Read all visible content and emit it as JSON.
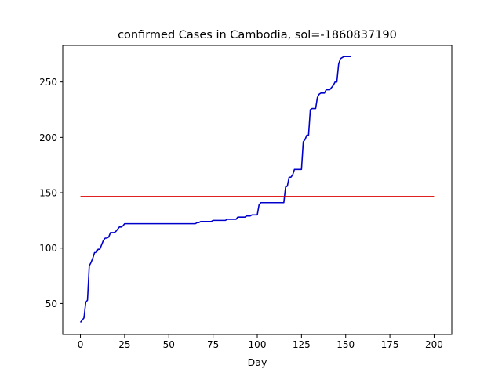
{
  "chart_data": {
    "type": "line",
    "title": "confirmed Cases in Cambodia, sol=-1860837190",
    "xlabel": "Day",
    "ylabel": "",
    "xlim": [
      -10,
      210
    ],
    "ylim": [
      22,
      283
    ],
    "xticks": [
      0,
      25,
      50,
      75,
      100,
      125,
      150,
      175,
      200
    ],
    "yticks": [
      50,
      100,
      150,
      200,
      250
    ],
    "grid": false,
    "legend": "none",
    "series": [
      {
        "color": "#0000cc",
        "x": [
          0,
          1,
          2,
          3,
          4,
          5,
          6,
          7,
          8,
          9,
          10,
          11,
          12,
          13,
          14,
          15,
          16,
          17,
          18,
          19,
          20,
          21,
          22,
          23,
          24,
          25,
          26,
          27,
          30,
          40,
          50,
          60,
          65,
          66,
          67,
          68,
          70,
          72,
          74,
          75,
          76,
          80,
          82,
          83,
          85,
          88,
          89,
          91,
          93,
          94,
          96,
          97,
          100,
          101,
          102,
          103,
          104,
          110,
          115,
          116,
          117,
          118,
          119,
          120,
          121,
          122,
          124,
          125,
          126,
          127,
          128,
          129,
          130,
          131,
          132,
          133,
          134,
          135,
          136,
          137,
          138,
          139,
          140,
          141,
          142,
          143,
          144,
          145,
          146,
          147,
          148,
          149,
          150,
          151,
          153
        ],
        "y": [
          33,
          35,
          37,
          51,
          53,
          84,
          87,
          91,
          96,
          96,
          99,
          99,
          103,
          107,
          109,
          109,
          110,
          114,
          114,
          114,
          115,
          117,
          119,
          119,
          120,
          122,
          122,
          122,
          122,
          122,
          122,
          122,
          122,
          123,
          123,
          124,
          124,
          124,
          124,
          125,
          125,
          125,
          125,
          126,
          126,
          126,
          128,
          128,
          128,
          129,
          129,
          130,
          130,
          139,
          141,
          141,
          141,
          141,
          141,
          155,
          156,
          164,
          164,
          166,
          171,
          171,
          171,
          171,
          196,
          198,
          202,
          202,
          225,
          226,
          226,
          226,
          236,
          239,
          240,
          240,
          240,
          243,
          243,
          243,
          245,
          247,
          250,
          250,
          266,
          271,
          272,
          273,
          273,
          273,
          273
        ]
      },
      {
        "color": "#dd0000",
        "x": [
          0,
          200
        ],
        "y": [
          146.5,
          146.5
        ]
      }
    ]
  }
}
